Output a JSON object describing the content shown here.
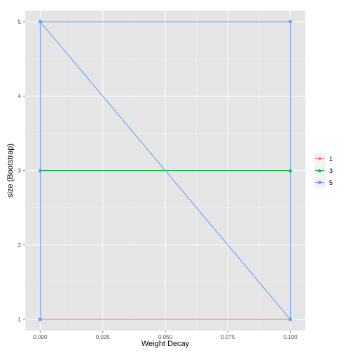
{
  "chart_data": {
    "type": "line",
    "title": "",
    "xlabel": "Weight Decay",
    "ylabel": "size (Bootstrap)",
    "xlim": [
      -0.006,
      0.106
    ],
    "ylim": [
      0.85,
      5.15
    ],
    "x_ticks": [
      0,
      0.025,
      0.05,
      0.075,
      0.1
    ],
    "x_tick_labels": [
      "0.000",
      "0.025",
      "0.050",
      "0.075",
      "0.100"
    ],
    "y_ticks": [
      1,
      2,
      3,
      4,
      5
    ],
    "y_tick_labels": [
      "1",
      "2",
      "3",
      "4",
      "5"
    ],
    "grid": true,
    "legend_position": "right",
    "series": [
      {
        "name": "1",
        "color": "#F8766D",
        "marker": "circle",
        "x": [
          0,
          0.1,
          0,
          0.1
        ],
        "y": [
          1,
          1,
          1,
          1
        ]
      },
      {
        "name": "3",
        "color": "#00BA38",
        "marker": "triangle",
        "x": [
          0,
          0.1,
          0,
          0.1
        ],
        "y": [
          3,
          3,
          3,
          3
        ]
      },
      {
        "name": "5",
        "color": "#619CFF",
        "marker": "square",
        "x": [
          0,
          0,
          0,
          0,
          0,
          0.1,
          0.1,
          0
        ],
        "y": [
          1,
          3,
          5,
          1,
          5,
          1,
          5,
          5
        ]
      }
    ]
  }
}
